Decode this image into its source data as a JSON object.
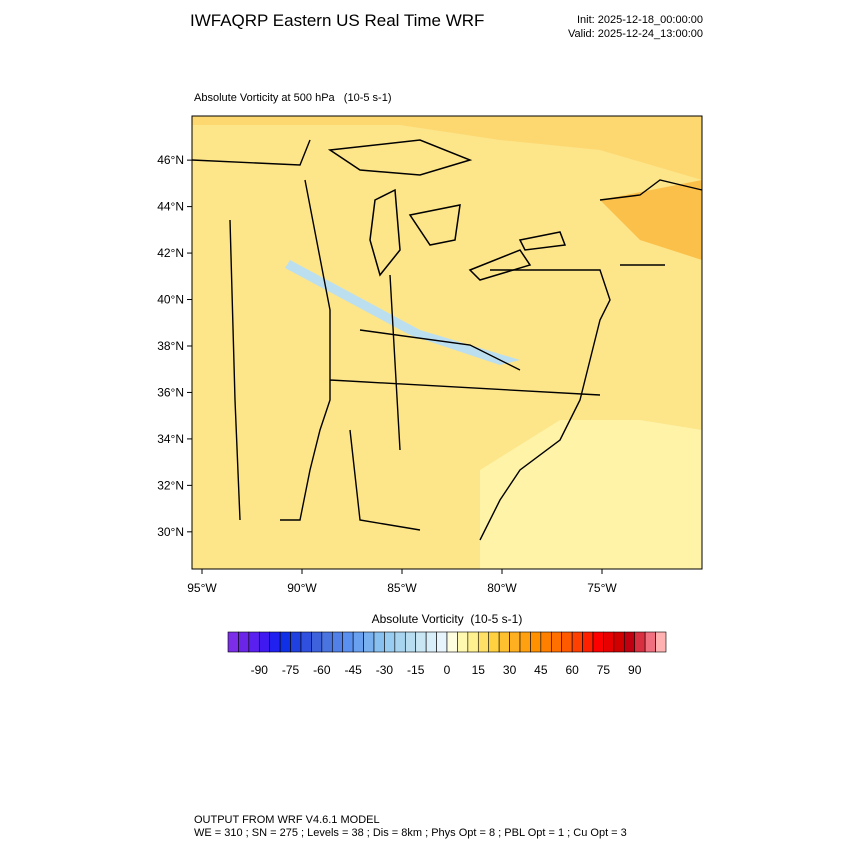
{
  "chart_data": {
    "type": "map",
    "title": "IWFAQRP Eastern US Real Time WRF",
    "init": "Init: 2025-12-18_00:00:00",
    "valid": "Valid: 2025-12-24_13:00:00",
    "subtitle": "Absolute Vorticity at 500 hPa   (10-5 s-1)",
    "xlim": [
      -95.5,
      -70
    ],
    "ylim": [
      28.4,
      47.9
    ],
    "xticks": [
      {
        "value": -95,
        "label": "95°W"
      },
      {
        "value": -90,
        "label": "90°W"
      },
      {
        "value": -85,
        "label": "85°W"
      },
      {
        "value": -80,
        "label": "80°W"
      },
      {
        "value": -75,
        "label": "75°W"
      }
    ],
    "yticks": [
      {
        "value": 30,
        "label": "30°N"
      },
      {
        "value": 32,
        "label": "32°N"
      },
      {
        "value": 34,
        "label": "34°N"
      },
      {
        "value": 36,
        "label": "36°N"
      },
      {
        "value": 38,
        "label": "38°N"
      },
      {
        "value": 40,
        "label": "40°N"
      },
      {
        "value": 42,
        "label": "42°N"
      },
      {
        "value": 44,
        "label": "44°N"
      },
      {
        "value": 46,
        "label": "46°N"
      }
    ],
    "colorbar": {
      "title": "Absolute Vorticity  (10-5 s-1)",
      "lim": [
        -105,
        105
      ],
      "ticks": [
        -90,
        -75,
        -60,
        -45,
        -30,
        -15,
        0,
        15,
        30,
        45,
        60,
        75,
        90
      ],
      "colors": [
        "#7b2de8",
        "#6a25e8",
        "#5a20ef",
        "#4018f0",
        "#2020f0",
        "#1030e8",
        "#2040e0",
        "#3050e0",
        "#3d62dc",
        "#4a74e0",
        "#5080e8",
        "#5a90f0",
        "#6aa0f0",
        "#78b0f0",
        "#88c0f0",
        "#98ccf0",
        "#a8d4f0",
        "#b8ddf0",
        "#c8e6f4",
        "#d8eef8",
        "#e8f4fc",
        "#fffde0",
        "#fff8b0",
        "#fff090",
        "#ffe066",
        "#ffd040",
        "#ffc030",
        "#ffb020",
        "#ffa010",
        "#ff9000",
        "#ff8000",
        "#ff7000",
        "#ff5a00",
        "#ff4000",
        "#ff2000",
        "#ff0000",
        "#e80000",
        "#d00000",
        "#c00010",
        "#d83040",
        "#f07080",
        "#ffb0b0"
      ]
    },
    "footer": [
      "OUTPUT FROM WRF V4.6.1 MODEL",
      "WE = 310 ; SN = 275 ; Levels = 38 ; Dis = 8km ; Phys Opt = 8 ; PBL Opt = 1 ; Cu Opt = 3"
    ]
  }
}
